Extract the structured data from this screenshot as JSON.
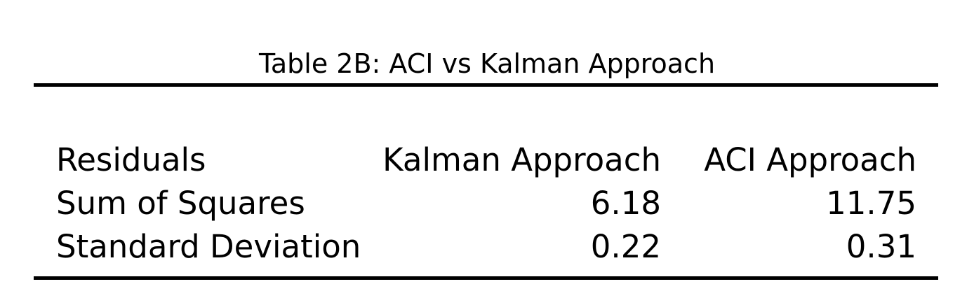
{
  "table": {
    "caption": "Table 2B: ACI vs Kalman Approach",
    "headers": [
      "Residuals",
      "Kalman Approach",
      "ACI Approach"
    ],
    "rows": [
      [
        "Sum of Squares",
        "6.18",
        "11.75"
      ],
      [
        "Standard Deviation",
        "0.22",
        "0.31"
      ]
    ]
  }
}
